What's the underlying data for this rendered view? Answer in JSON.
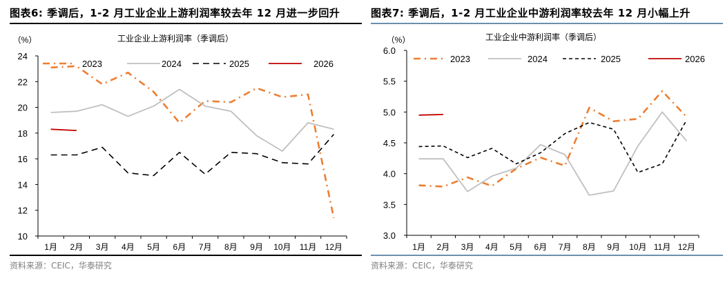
{
  "chart_data": [
    {
      "type": "line",
      "figure_label": "图表6:",
      "figure_title": "季调后，1-2 月工业企业上游利润率较去年 12 月进一步回升",
      "title": "工业企业上游利润率（季调后）",
      "ylabel": "（%）",
      "xlabel": "",
      "categories": [
        "1月",
        "2月",
        "3月",
        "4月",
        "5月",
        "6月",
        "7月",
        "8月",
        "9月",
        "10月",
        "11月",
        "12月"
      ],
      "ylim": [
        10,
        24
      ],
      "yticks": [
        "10",
        "12",
        "14",
        "16",
        "18",
        "20",
        "22",
        "24"
      ],
      "ytick_values": [
        10,
        12,
        14,
        16,
        18,
        20,
        22,
        24
      ],
      "grid": false,
      "legend_position": "top",
      "series": [
        {
          "name": "2023",
          "color": "#ed7d31",
          "style": "dash-dot",
          "values": [
            23.1,
            23.2,
            21.8,
            22.7,
            21.2,
            18.8,
            20.5,
            20.4,
            21.5,
            20.8,
            21.0,
            11.4
          ]
        },
        {
          "name": "2024",
          "color": "#bfbfbf",
          "style": "solid",
          "values": [
            19.6,
            19.7,
            20.2,
            19.3,
            20.1,
            21.4,
            20.1,
            19.7,
            17.8,
            16.6,
            18.8,
            18.3
          ]
        },
        {
          "name": "2025",
          "color": "#000000",
          "style": "long-dash",
          "values": [
            16.3,
            16.3,
            16.9,
            14.9,
            14.7,
            16.5,
            14.8,
            16.5,
            16.4,
            15.7,
            15.6,
            17.9
          ]
        },
        {
          "name": "2026",
          "color": "#c00000",
          "style": "solid",
          "values": [
            18.3,
            18.2
          ]
        }
      ],
      "source": "资料来源：CEIC，华泰研究"
    },
    {
      "type": "line",
      "figure_label": "图表7:",
      "figure_title": "季调后，1-2 月工业企业中游利润率较去年 12 月小幅上升",
      "title": "工业企业中游利润率（季调后）",
      "ylabel": "（%）",
      "xlabel": "",
      "categories": [
        "1月",
        "2月",
        "3月",
        "4月",
        "5月",
        "6月",
        "7月",
        "8月",
        "9月",
        "10月",
        "11月",
        "12月"
      ],
      "ylim": [
        3.0,
        6.0
      ],
      "yticks": [
        "3.0",
        "3.5",
        "4.0",
        "4.5",
        "5.0",
        "5.5",
        "6.0"
      ],
      "ytick_values": [
        3.0,
        3.5,
        4.0,
        4.5,
        5.0,
        5.5,
        6.0
      ],
      "grid": false,
      "legend_position": "top",
      "series": [
        {
          "name": "2023",
          "color": "#ed7d31",
          "style": "dash-dot",
          "values": [
            3.81,
            3.79,
            3.94,
            3.8,
            4.08,
            4.26,
            4.13,
            5.07,
            4.85,
            4.89,
            5.34,
            4.92
          ]
        },
        {
          "name": "2024",
          "color": "#bfbfbf",
          "style": "solid",
          "values": [
            4.24,
            4.24,
            3.71,
            3.96,
            4.09,
            4.47,
            4.31,
            3.65,
            3.72,
            4.45,
            5.0,
            4.53
          ]
        },
        {
          "name": "2025",
          "color": "#000000",
          "style": "short-dash",
          "values": [
            4.44,
            4.45,
            4.26,
            4.41,
            4.16,
            4.34,
            4.65,
            4.83,
            4.72,
            4.02,
            4.16,
            4.87
          ]
        },
        {
          "name": "2026",
          "color": "#c00000",
          "style": "solid",
          "values": [
            4.95,
            4.96
          ]
        }
      ],
      "source": "资料来源：CEIC，华泰研究"
    }
  ]
}
